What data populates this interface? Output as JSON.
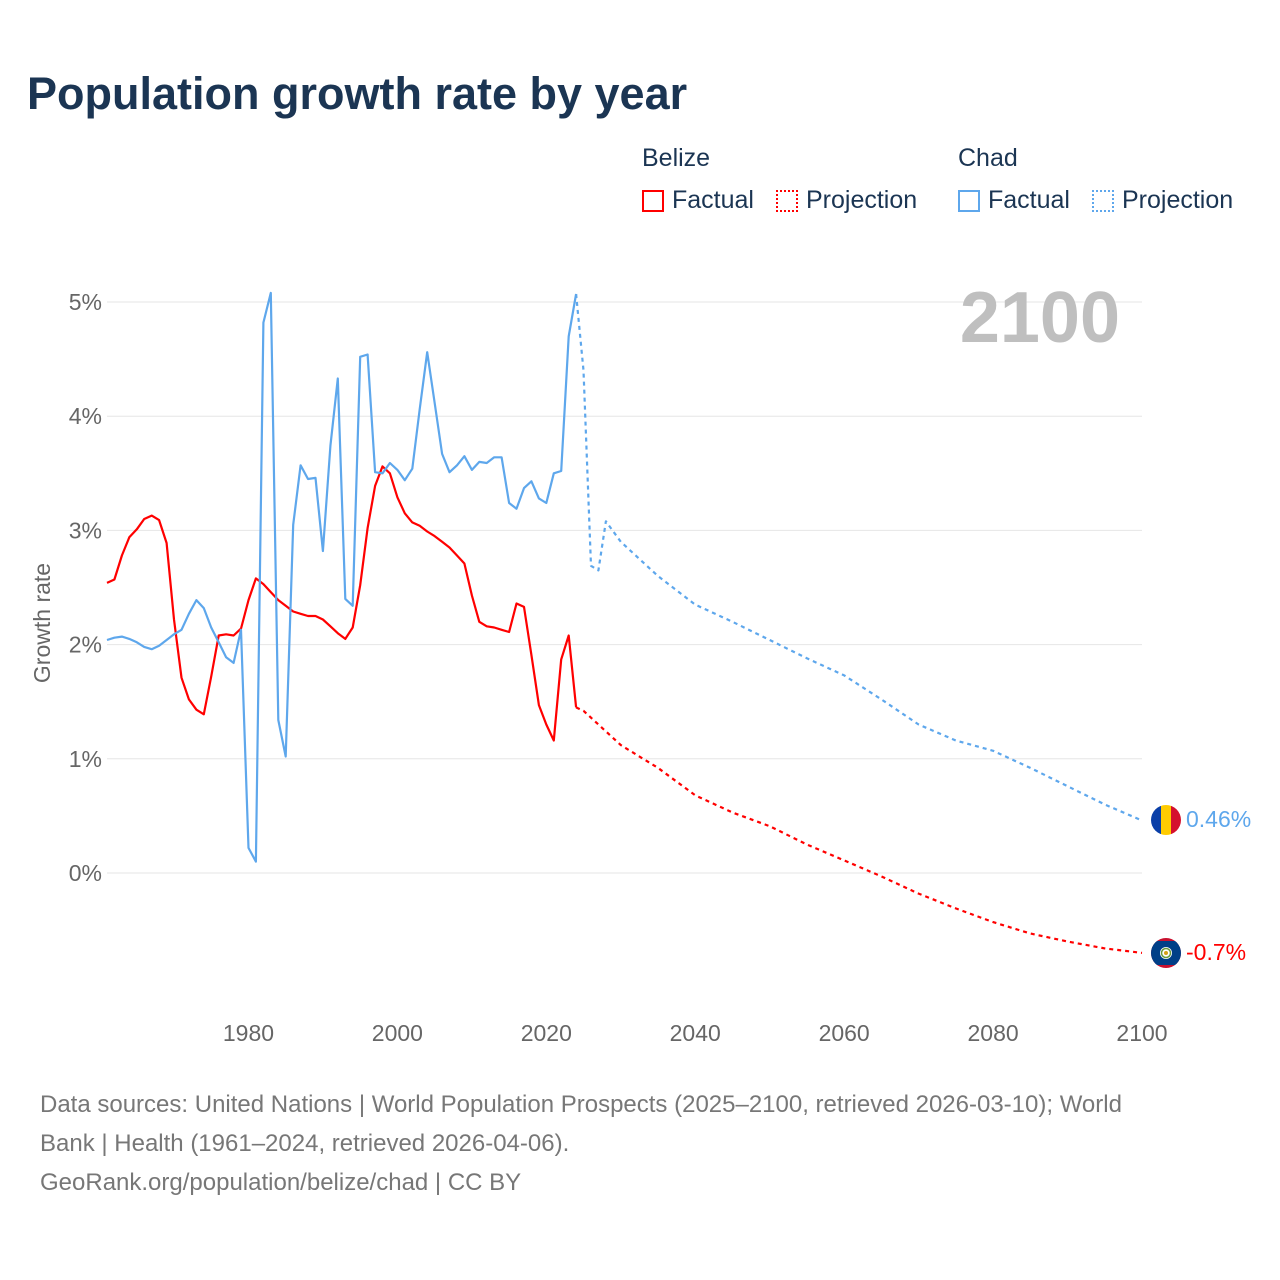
{
  "title": "Population growth rate by year",
  "legend": {
    "groups": [
      {
        "name": "Belize",
        "color": "#ff0000",
        "factual": "Factual",
        "projection": "Projection"
      },
      {
        "name": "Chad",
        "color": "#5ea7ec",
        "factual": "Factual",
        "projection": "Projection"
      }
    ]
  },
  "year_label": "2100",
  "end_labels": {
    "chad": "0.46%",
    "belize": "-0.7%"
  },
  "flags": {
    "chad": "chad-flag-icon",
    "belize": "belize-flag-icon"
  },
  "footer": {
    "line1": "Data sources: United Nations | World Population Prospects (2025–2100, retrieved 2026-03-10); World",
    "line2": "Bank | Health (1961–2024, retrieved 2026-04-06).",
    "line3": "GeoRank.org/population/belize/chad | CC BY"
  },
  "chart_data": {
    "type": "line",
    "title": "Population growth rate by year",
    "xlabel": "",
    "ylabel": "Growth rate",
    "xlim": [
      1961,
      2100
    ],
    "ylim": [
      -1.2,
      5.2
    ],
    "x_ticks": [
      1980,
      2000,
      2020,
      2040,
      2060,
      2080,
      2100
    ],
    "y_ticks": [
      0,
      1,
      2,
      3,
      4,
      5
    ],
    "y_tick_labels": [
      "0%",
      "1%",
      "2%",
      "3%",
      "4%",
      "5%"
    ],
    "grid": true,
    "legend_position": "top-right",
    "series": [
      {
        "name": "Belize Factual",
        "color": "#ff0000",
        "dashed": false,
        "x": [
          1961,
          1962,
          1963,
          1964,
          1965,
          1966,
          1967,
          1968,
          1969,
          1970,
          1971,
          1972,
          1973,
          1974,
          1975,
          1976,
          1977,
          1978,
          1979,
          1980,
          1981,
          1982,
          1983,
          1984,
          1985,
          1986,
          1987,
          1988,
          1989,
          1990,
          1991,
          1992,
          1993,
          1994,
          1995,
          1996,
          1997,
          1998,
          1999,
          2000,
          2001,
          2002,
          2003,
          2004,
          2005,
          2006,
          2007,
          2008,
          2009,
          2010,
          2011,
          2012,
          2013,
          2014,
          2015,
          2016,
          2017,
          2018,
          2019,
          2020,
          2021,
          2022,
          2023,
          2024
        ],
        "y": [
          2.54,
          2.57,
          2.78,
          2.94,
          3.01,
          3.1,
          3.13,
          3.09,
          2.89,
          2.22,
          1.71,
          1.52,
          1.43,
          1.39,
          1.72,
          2.08,
          2.09,
          2.08,
          2.14,
          2.39,
          2.58,
          2.53,
          2.46,
          2.39,
          2.34,
          2.29,
          2.27,
          2.25,
          2.25,
          2.22,
          2.16,
          2.1,
          2.05,
          2.15,
          2.52,
          3.02,
          3.39,
          3.56,
          3.5,
          3.29,
          3.15,
          3.07,
          3.04,
          2.99,
          2.95,
          2.9,
          2.85,
          2.78,
          2.71,
          2.43,
          2.2,
          2.16,
          2.15,
          2.13,
          2.11,
          2.36,
          2.33,
          1.91,
          1.47,
          1.3,
          1.16,
          1.87,
          2.08,
          1.45
        ]
      },
      {
        "name": "Belize Projection",
        "color": "#ff0000",
        "dashed": true,
        "x": [
          2024,
          2025,
          2030,
          2035,
          2040,
          2045,
          2050,
          2055,
          2060,
          2065,
          2070,
          2075,
          2080,
          2085,
          2090,
          2095,
          2100
        ],
        "y": [
          1.45,
          1.42,
          1.12,
          0.92,
          0.68,
          0.53,
          0.41,
          0.25,
          0.11,
          -0.03,
          -0.18,
          -0.31,
          -0.43,
          -0.53,
          -0.6,
          -0.66,
          -0.7
        ]
      },
      {
        "name": "Chad Factual",
        "color": "#5ea7ec",
        "dashed": false,
        "x": [
          1961,
          1962,
          1963,
          1964,
          1965,
          1966,
          1967,
          1968,
          1969,
          1970,
          1971,
          1972,
          1973,
          1974,
          1975,
          1976,
          1977,
          1978,
          1979,
          1980,
          1981,
          1982,
          1983,
          1984,
          1985,
          1986,
          1987,
          1988,
          1989,
          1990,
          1991,
          1992,
          1993,
          1994,
          1995,
          1996,
          1997,
          1998,
          1999,
          2000,
          2001,
          2002,
          2003,
          2004,
          2005,
          2006,
          2007,
          2008,
          2009,
          2010,
          2011,
          2012,
          2013,
          2014,
          2015,
          2016,
          2017,
          2018,
          2019,
          2020,
          2021,
          2022,
          2023,
          2024
        ],
        "y": [
          2.04,
          2.06,
          2.07,
          2.05,
          2.02,
          1.98,
          1.96,
          1.99,
          2.04,
          2.09,
          2.13,
          2.27,
          2.39,
          2.32,
          2.15,
          2.02,
          1.89,
          1.84,
          2.13,
          0.22,
          0.1,
          4.82,
          5.08,
          1.34,
          1.02,
          3.05,
          3.57,
          3.45,
          3.46,
          2.82,
          3.74,
          4.33,
          2.4,
          2.34,
          4.52,
          4.54,
          3.51,
          3.5,
          3.59,
          3.53,
          3.44,
          3.54,
          4.06,
          4.56,
          4.12,
          3.67,
          3.51,
          3.57,
          3.65,
          3.53,
          3.6,
          3.59,
          3.64,
          3.64,
          3.24,
          3.19,
          3.37,
          3.43,
          3.28,
          3.24,
          3.5,
          3.52,
          4.7,
          5.07
        ]
      },
      {
        "name": "Chad Projection",
        "color": "#5ea7ec",
        "dashed": true,
        "x": [
          2024,
          2025,
          2026,
          2027,
          2028,
          2030,
          2035,
          2040,
          2045,
          2050,
          2055,
          2060,
          2065,
          2070,
          2075,
          2080,
          2085,
          2090,
          2095,
          2100
        ],
        "y": [
          5.07,
          4.4,
          2.69,
          2.65,
          3.08,
          2.9,
          2.6,
          2.35,
          2.2,
          2.04,
          1.88,
          1.73,
          1.52,
          1.3,
          1.16,
          1.07,
          0.92,
          0.76,
          0.6,
          0.46
        ]
      }
    ]
  }
}
